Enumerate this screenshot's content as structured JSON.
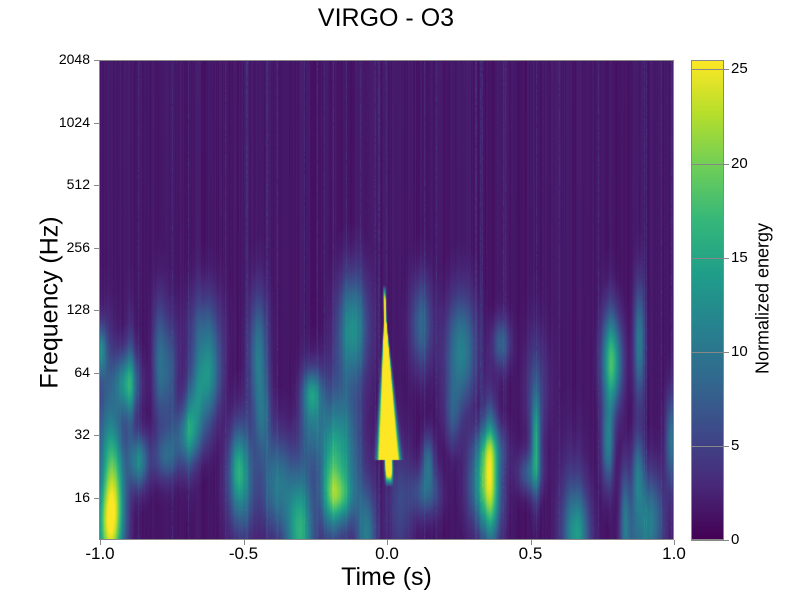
{
  "chart_data": {
    "type": "heatmap",
    "title": "VIRGO - O3",
    "xlabel": "Time (s)",
    "ylabel": "Frequency (Hz)",
    "xlim": [
      -1.0,
      1.0
    ],
    "ylim": [
      10,
      2048
    ],
    "yscale": "log2",
    "xticks": [
      "-1.0",
      "-0.5",
      "0.0",
      "0.5",
      "1.0"
    ],
    "xtick_values": [
      -1.0,
      -0.5,
      0.0,
      0.5,
      1.0
    ],
    "yticks": [
      "16",
      "32",
      "64",
      "128",
      "256",
      "512",
      "1024",
      "2048"
    ],
    "ytick_values": [
      16,
      32,
      64,
      128,
      256,
      512,
      1024,
      2048
    ],
    "colorbar": {
      "label": "Normalized energy",
      "range": [
        0,
        25.5
      ],
      "ticks": [
        "0",
        "5",
        "10",
        "15",
        "20",
        "25"
      ],
      "tick_values": [
        0,
        5,
        10,
        15,
        20,
        25
      ],
      "colormap": "viridis"
    },
    "features": [
      {
        "name": "main chirp",
        "time": 0.0,
        "freq_low": 20,
        "freq_high": 150,
        "energy": 25
      },
      {
        "name": "low-frequency background",
        "freq_low": 10,
        "freq_high": 60,
        "energy": 6
      }
    ],
    "colors": {
      "low": "#440154",
      "high": "#fde725"
    }
  }
}
